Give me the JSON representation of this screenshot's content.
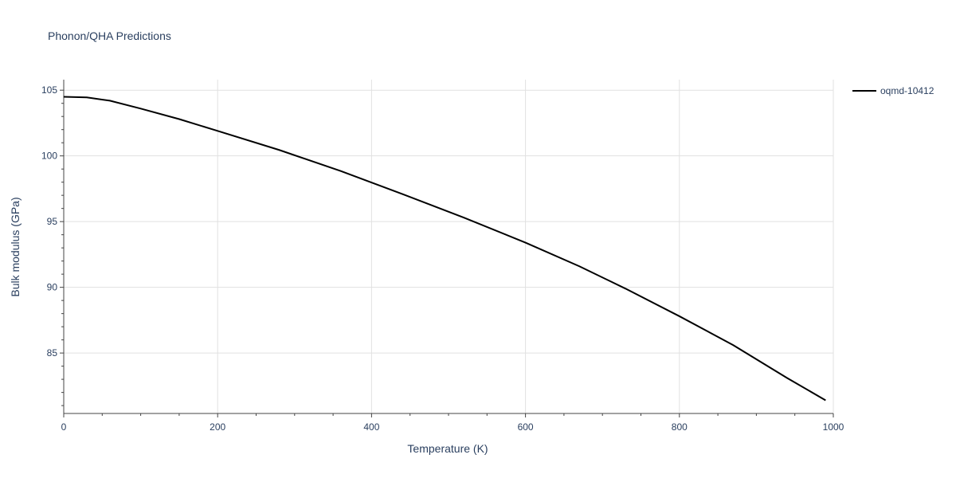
{
  "chart_data": {
    "type": "line",
    "title": "Phonon/QHA Predictions",
    "xlabel": "Temperature (K)",
    "ylabel": "Bulk modulus (GPa)",
    "xlim": [
      0,
      1000
    ],
    "ylim": [
      80.4,
      105.8
    ],
    "xticks": [
      0,
      200,
      400,
      600,
      800,
      1000
    ],
    "yticks": [
      85,
      90,
      95,
      100,
      105
    ],
    "grid": true,
    "legend_position": "top-right",
    "series": [
      {
        "name": "oqmd-10412",
        "color": "#000000",
        "x": [
          0,
          30,
          60,
          100,
          150,
          200,
          280,
          360,
          440,
          520,
          600,
          670,
          730,
          800,
          870,
          940,
          990
        ],
        "y": [
          104.5,
          104.45,
          104.2,
          103.6,
          102.8,
          101.9,
          100.45,
          98.85,
          97.1,
          95.3,
          93.4,
          91.6,
          89.9,
          87.8,
          85.6,
          83.1,
          81.4
        ]
      }
    ]
  }
}
